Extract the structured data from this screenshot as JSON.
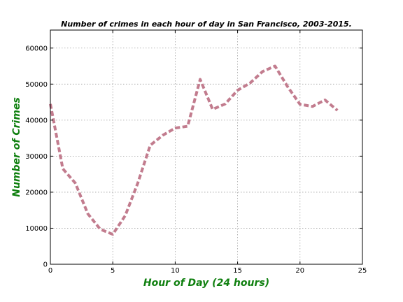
{
  "chart_data": {
    "type": "line",
    "title": "Number of crimes in each hour of day in San Francisco, 2003-2015.",
    "xlabel": "Hour of Day (24 hours)",
    "ylabel": "Number of Crimes",
    "xlim": [
      0,
      25
    ],
    "ylim": [
      0,
      65000
    ],
    "xticks": [
      "0",
      "5",
      "10",
      "15",
      "20",
      "25"
    ],
    "xtick_values": [
      0,
      5,
      10,
      15,
      20,
      25
    ],
    "yticks": [
      "0",
      "10000",
      "20000",
      "30000",
      "40000",
      "50000",
      "60000"
    ],
    "ytick_values": [
      0,
      10000,
      20000,
      30000,
      40000,
      50000,
      60000
    ],
    "grid": true,
    "series": [
      {
        "x": [
          0,
          1,
          2,
          3,
          4,
          5,
          6,
          7,
          8,
          9,
          10,
          11,
          12,
          13,
          14,
          15,
          16,
          17,
          18,
          19,
          20,
          21,
          22,
          23
        ],
        "values": [
          44500,
          26500,
          22500,
          14000,
          9700,
          8300,
          13500,
          22500,
          33000,
          35800,
          37800,
          38300,
          51300,
          43000,
          44500,
          48300,
          50300,
          53500,
          55000,
          49300,
          44400,
          43800,
          45600,
          42700
        ],
        "color": "#c27c8e",
        "line_style": "dashed"
      }
    ]
  },
  "colors": {
    "axis_label": "#108010",
    "line": "#c27c8e"
  }
}
